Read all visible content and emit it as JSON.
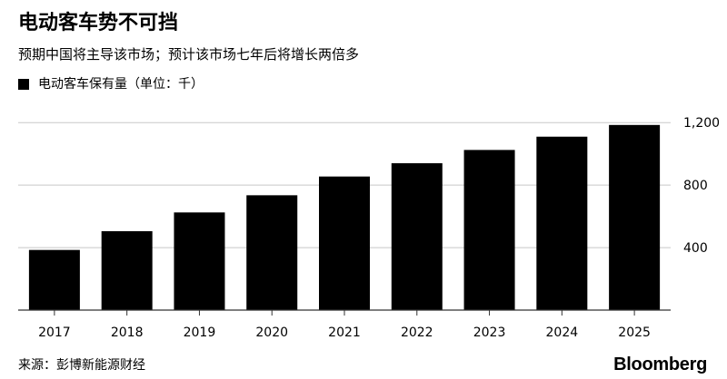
{
  "title": "电动客车势不可挡",
  "subtitle": "预期中国将主导该市场；预计该市场七年后将增长两倍多",
  "source": "来源：彭博新能源财经",
  "brand": "Bloomberg",
  "colors": {
    "bar": "#000000",
    "gridline": "#c8c8c8",
    "axis": "#333333",
    "background": "#ffffff"
  },
  "chart_data": {
    "type": "bar",
    "categories": [
      "2017",
      "2018",
      "2019",
      "2020",
      "2021",
      "2022",
      "2023",
      "2024",
      "2025"
    ],
    "series": [
      {
        "name": "电动客车保有量（单位：千）",
        "values": [
          385,
          505,
          625,
          735,
          855,
          940,
          1025,
          1110,
          1185
        ]
      }
    ],
    "ylim": [
      0,
      1300
    ],
    "yticks": [
      400,
      800,
      1200
    ],
    "ytick_labels": [
      "400",
      "800",
      "1,200"
    ],
    "xlabel": "",
    "ylabel": "",
    "grid": true,
    "legend": "top-left",
    "yaxis_side": "right"
  }
}
